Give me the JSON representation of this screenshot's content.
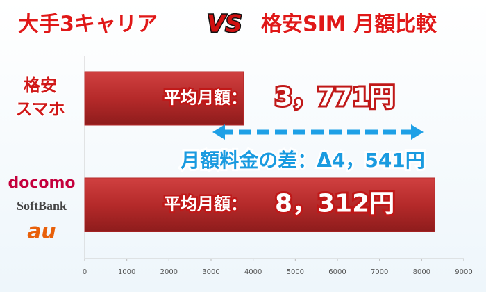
{
  "chart_data": {
    "type": "hbar",
    "title_parts": [
      "大手3キャリア",
      "VS",
      "格安SIM 月額比較"
    ],
    "categories": [
      [
        "格安",
        "スマホ"
      ],
      [
        "docomo",
        "SoftBank",
        "au"
      ]
    ],
    "values": [
      3771,
      8312
    ],
    "value_label_prefix": "平均月額：",
    "value_labels": [
      "3，771円",
      "8，312円"
    ],
    "annotation": "月額料金の差：Δ4，541円",
    "color": "#b52a2a",
    "xlim": [
      0,
      9000
    ],
    "xticks": [
      0,
      1000,
      2000,
      3000,
      4000,
      5000,
      6000,
      7000,
      8000,
      9000
    ]
  }
}
